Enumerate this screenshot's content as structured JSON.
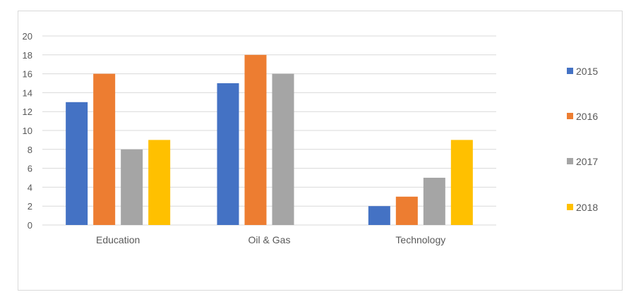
{
  "chart_data": {
    "type": "bar",
    "title": "",
    "xlabel": "",
    "ylabel": "",
    "categories": [
      "Education",
      "Oil & Gas",
      "Technology"
    ],
    "series": [
      {
        "name": "2015",
        "values": [
          13,
          15,
          2
        ],
        "color": "#4472C4"
      },
      {
        "name": "2016",
        "values": [
          16,
          18,
          3
        ],
        "color": "#ED7D31"
      },
      {
        "name": "2017",
        "values": [
          8,
          16,
          5
        ],
        "color": "#A5A5A5"
      },
      {
        "name": "2018",
        "values": [
          9,
          0,
          9
        ],
        "color": "#FFC000"
      }
    ],
    "ylim": [
      0,
      20
    ],
    "yticks": [
      "0",
      "2",
      "4",
      "6",
      "8",
      "10",
      "12",
      "14",
      "16",
      "18",
      "20"
    ],
    "grid": true,
    "legend_position": "right"
  }
}
